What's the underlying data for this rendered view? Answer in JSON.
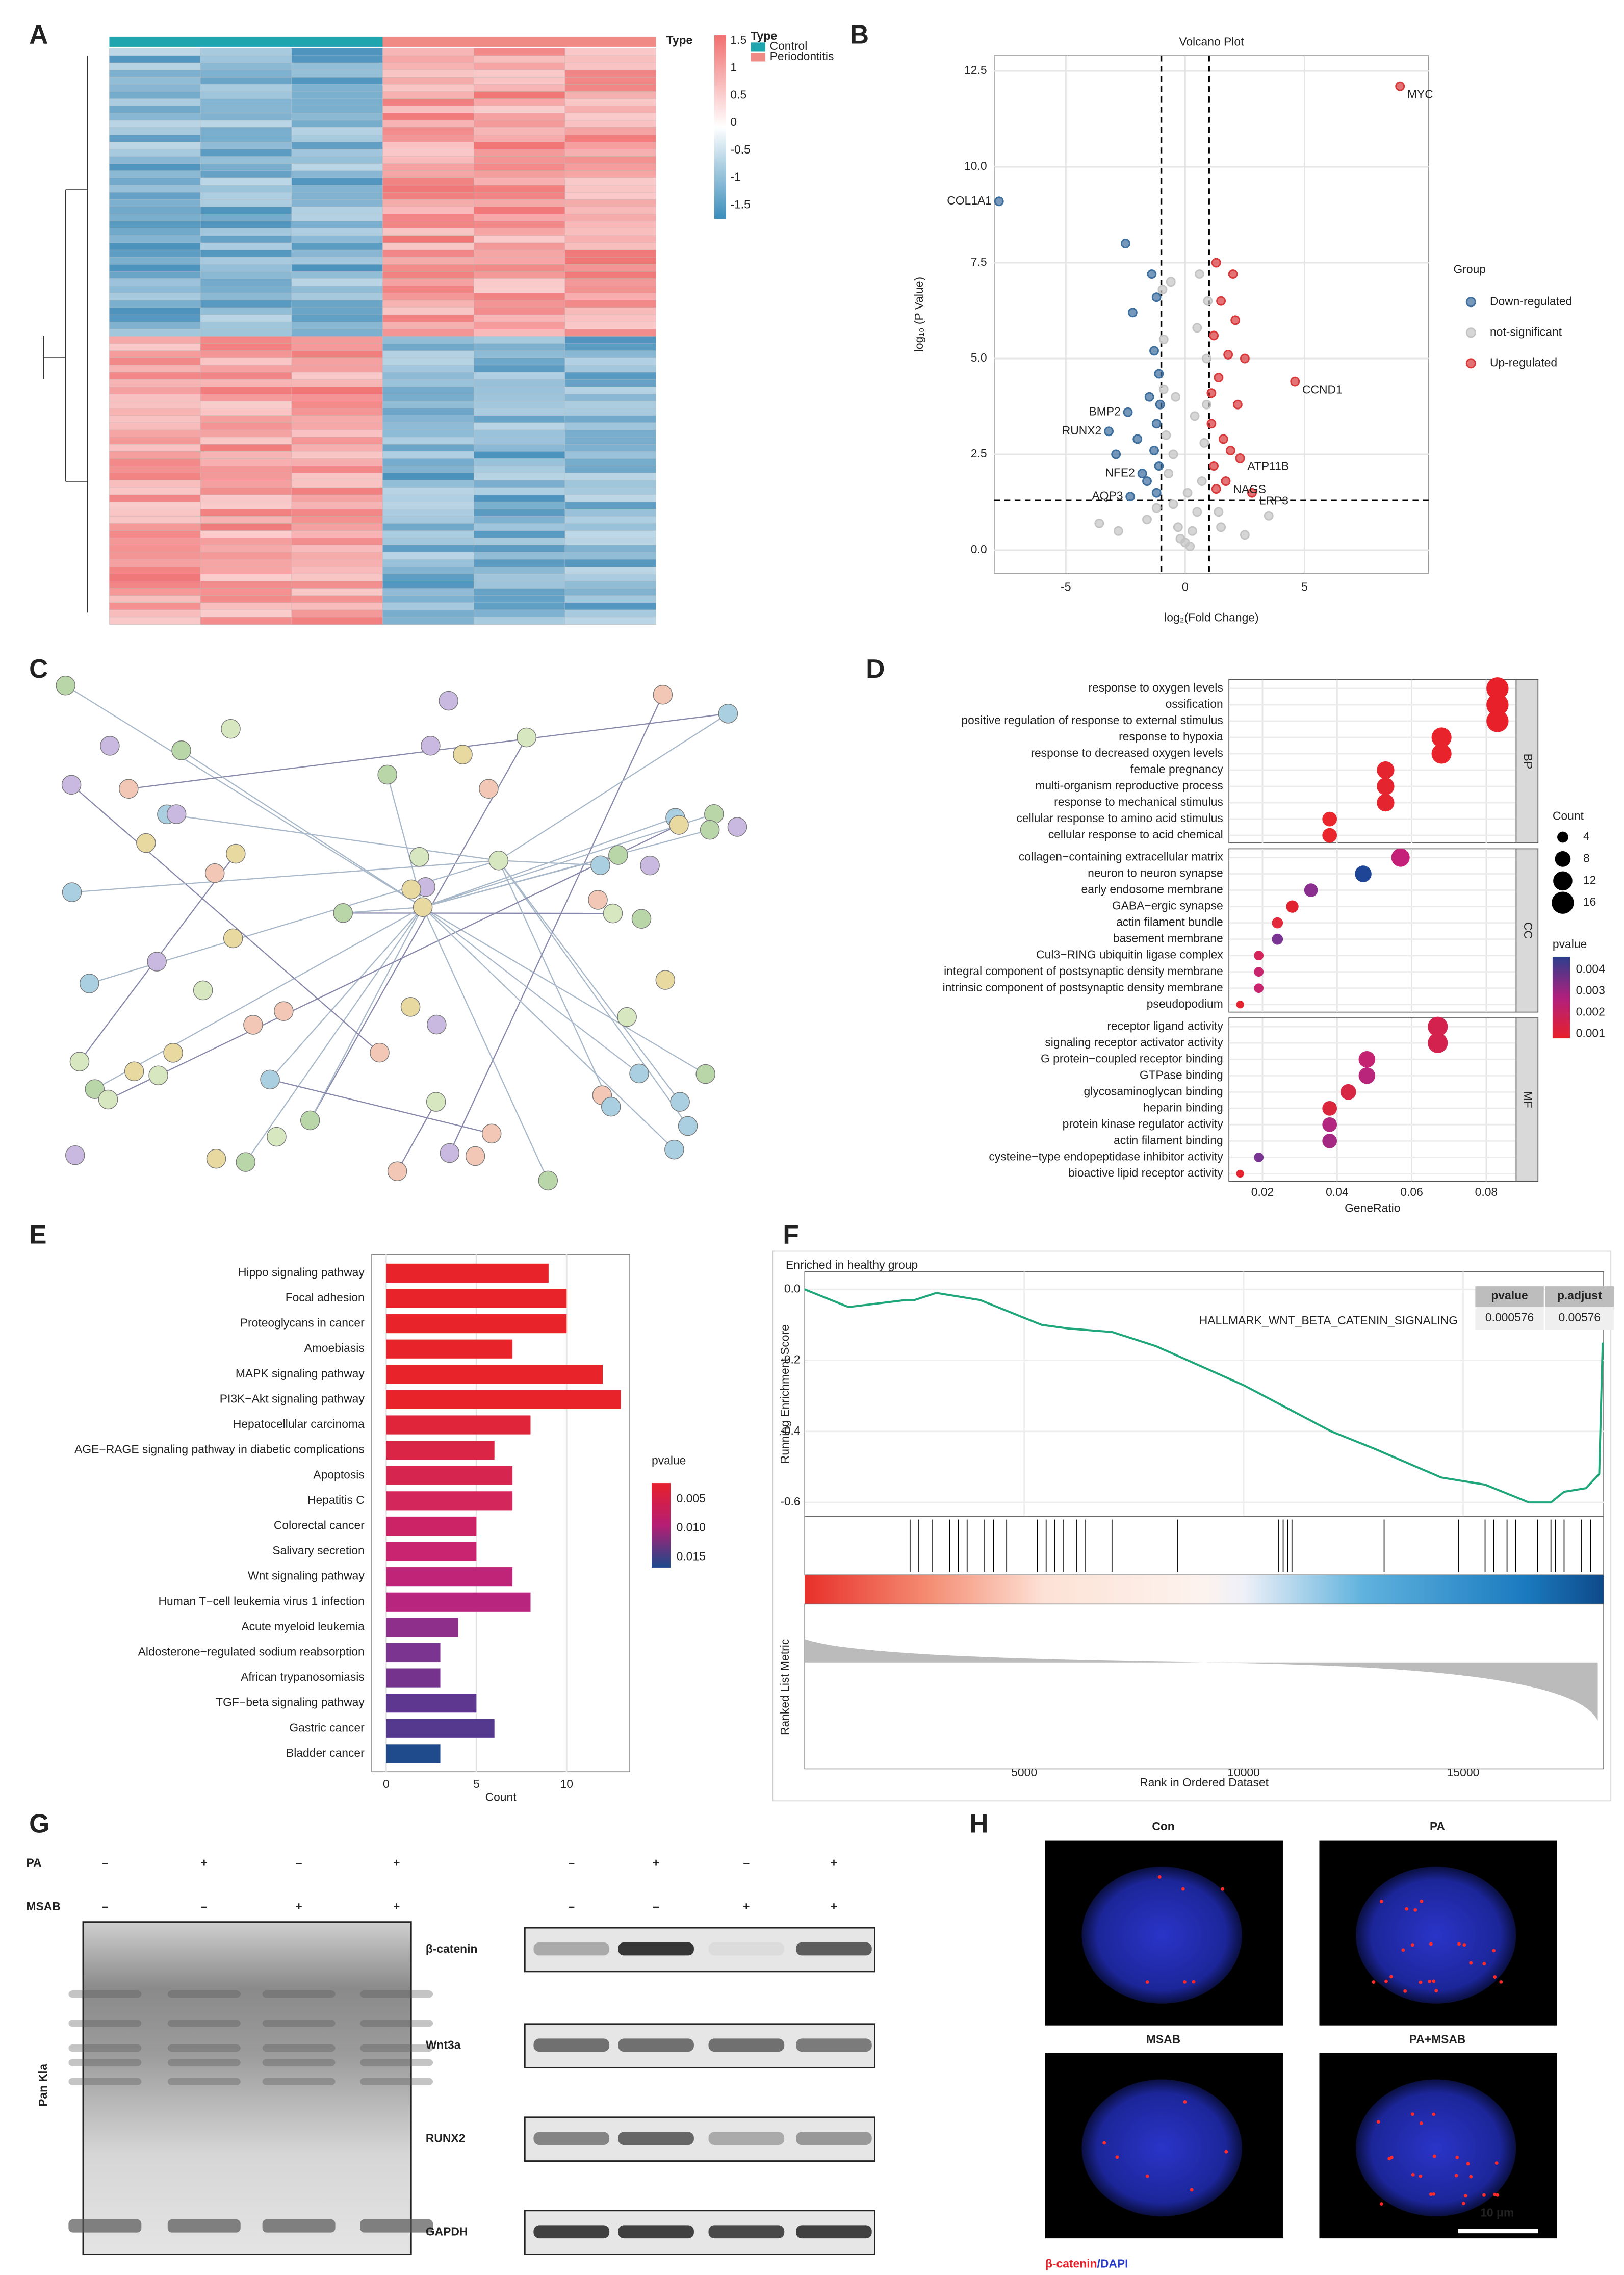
{
  "panel_labels": [
    "A",
    "B",
    "C",
    "D",
    "E",
    "F",
    "G",
    "H"
  ],
  "heatmap": {
    "annotation_title": "Type",
    "legend_title": "Type",
    "groups": [
      "Control",
      "Periodontitis"
    ],
    "group_colors": [
      "#1fa5ad",
      "#f08a84"
    ],
    "legend_ticks": [
      1.5,
      1,
      0.5,
      0,
      -0.5,
      -1,
      -1.5
    ],
    "legend_lim": [
      -1.75,
      1.6
    ],
    "legend_colors": [
      "#f26f6f",
      "#ffffff",
      "#3a8dbb"
    ]
  },
  "chart_data": [
    {
      "type": "scatter",
      "title": "Volcano Plot",
      "xlabel": "log₂(Fold Change)",
      "ylabel": "log₁₀ (P Value)",
      "xlim": [
        -8,
        10.2
      ],
      "ylim": [
        -0.6,
        12.9
      ],
      "xticks": [
        -5,
        0,
        5
      ],
      "yticks": [
        {
          "value": 0,
          "label": "0.0"
        },
        2.5,
        {
          "value": 5,
          "label": "5.0"
        },
        7.5,
        {
          "value": 10,
          "label": "10.0"
        },
        12.5
      ],
      "vlines": [
        -1,
        1
      ],
      "hlines": [
        1.3
      ],
      "grid": true,
      "legend_title": "Group",
      "series": [
        {
          "name": "Down-regulated",
          "color": "#3c6e9e",
          "x": [
            -7.8,
            -2.4,
            -3.2,
            -1.8,
            -2.3,
            -2.5,
            -1.4,
            -2.2,
            -1.2,
            -1.3,
            -1.1,
            -1.5,
            -1.2,
            -2.0,
            -1.3,
            -1.1,
            -1.6,
            -1.2,
            -2.9,
            -1.05
          ],
          "y": [
            9.1,
            3.6,
            3.1,
            2.0,
            1.4,
            8.0,
            7.2,
            6.2,
            6.6,
            5.2,
            4.6,
            4.0,
            3.3,
            2.9,
            2.6,
            2.2,
            1.8,
            1.5,
            2.5,
            3.8
          ],
          "labels": [
            "COL1A1",
            "BMP2",
            "RUNX2",
            "NFE2",
            "AQP3",
            null,
            null,
            null,
            null,
            null,
            null,
            null,
            null,
            null,
            null,
            null,
            null,
            null,
            null,
            null
          ]
        },
        {
          "name": "not-significant",
          "color": "#c4c4c4",
          "x": [
            0,
            0.3,
            -0.3,
            0.5,
            -0.5,
            0.7,
            -0.7,
            0.8,
            -0.8,
            0.9,
            -0.9,
            0.9,
            -0.9,
            0.95,
            -0.95,
            0.6,
            -0.6,
            0.2,
            -0.2,
            1.5,
            -1.6,
            2.5,
            -2.8,
            3.5,
            -3.6,
            0.4,
            -0.4,
            0.5,
            -0.5,
            0.1,
            -1.2,
            1.4
          ],
          "y": [
            0.2,
            0.5,
            0.6,
            1.0,
            1.2,
            1.8,
            2.0,
            2.8,
            3.0,
            3.8,
            4.2,
            5.0,
            5.5,
            6.5,
            6.8,
            7.2,
            7.0,
            0.1,
            0.3,
            0.6,
            0.8,
            0.4,
            0.5,
            0.9,
            0.7,
            3.5,
            4.0,
            5.8,
            2.5,
            1.5,
            1.1,
            1.0
          ]
        },
        {
          "name": "Up-regulated",
          "color": "#d9383a",
          "x": [
            9.0,
            4.6,
            2.3,
            1.7,
            2.8,
            1.3,
            2.0,
            1.5,
            2.1,
            1.2,
            1.8,
            1.4,
            2.2,
            1.1,
            1.6,
            1.2,
            1.9,
            1.3,
            2.5,
            1.1
          ],
          "y": [
            12.1,
            4.4,
            2.4,
            1.8,
            1.5,
            7.5,
            7.2,
            6.5,
            6.0,
            5.6,
            5.1,
            4.5,
            3.8,
            3.3,
            2.9,
            2.2,
            2.6,
            1.6,
            5.0,
            4.1
          ],
          "labels": [
            "MYC",
            "CCND1",
            "ATP11B",
            "NAGS",
            "LRP3",
            null,
            null,
            null,
            null,
            null,
            null,
            null,
            null,
            null,
            null,
            null,
            null,
            null,
            null,
            null
          ]
        }
      ]
    },
    {
      "type": "dot",
      "xlabel": "GeneRatio",
      "xlim": [
        0.011,
        0.088
      ],
      "xticks": [
        0.02,
        0.04,
        0.06,
        0.08
      ],
      "grid": true,
      "size_title": "Count",
      "size_ticks": [
        4,
        8,
        12,
        16
      ],
      "legend_title": "pvalue",
      "legend_ticks": [
        0.004,
        0.003,
        0.002,
        0.001
      ],
      "clim": [
        0.0008,
        0.0046
      ],
      "legend_colors": [
        "#e8202a",
        "#b0207e",
        "#2c3e8c"
      ],
      "groups": [
        {
          "name": "BP",
          "categories": [
            "response to oxygen levels",
            "ossification",
            "positive regulation of response to external stimulus",
            "response to hypoxia",
            "response to decreased oxygen levels",
            "female pregnancy",
            "multi-organism reproductive process",
            "response to mechanical stimulus",
            "cellular response to amino acid stimulus",
            "cellular response to acid chemical"
          ],
          "x": [
            0.083,
            0.083,
            0.083,
            0.068,
            0.068,
            0.053,
            0.053,
            0.053,
            0.038,
            0.038
          ],
          "sizes": [
            16,
            16,
            16,
            13,
            13,
            10,
            10,
            10,
            7,
            7
          ],
          "colors": [
            "#e8202a",
            "#e8202a",
            "#e8202a",
            "#e8232c",
            "#e8232c",
            "#e4252f",
            "#e4252f",
            "#e4252f",
            "#e8262b",
            "#e8262b"
          ]
        },
        {
          "name": "CC",
          "categories": [
            "collagen−containing extracellular matrix",
            "neuron to neuron synapse",
            "early endosome membrane",
            "GABA−ergic synapse",
            "actin filament bundle",
            "basement membrane",
            "Cul3−RING ubiquitin ligase complex",
            "integral component of postsynaptic density membrane",
            "intrinsic component of postsynaptic density membrane",
            "pseudopodium"
          ],
          "x": [
            0.057,
            0.047,
            0.033,
            0.028,
            0.024,
            0.024,
            0.019,
            0.019,
            0.019,
            0.014
          ],
          "sizes": [
            11,
            9,
            6,
            5,
            4,
            4,
            3,
            3,
            3,
            2
          ],
          "colors": [
            "#c4207a",
            "#1f4597",
            "#8a2f8f",
            "#e0232e",
            "#e22a3c",
            "#7a3493",
            "#d4245a",
            "#c8256e",
            "#c8256e",
            "#e4232e"
          ]
        },
        {
          "name": "MF",
          "categories": [
            "receptor ligand activity",
            "signaling receptor activator activity",
            "G protein−coupled receptor binding",
            "GTPase binding",
            "glycosaminoglycan binding",
            "heparin binding",
            "protein kinase regulator activity",
            "actin filament binding",
            "cysteine−type endopeptidase inhibitor activity",
            "bioactive lipid receptor activity"
          ],
          "x": [
            0.067,
            0.067,
            0.048,
            0.048,
            0.043,
            0.038,
            0.038,
            0.038,
            0.019,
            0.014
          ],
          "sizes": [
            13,
            13,
            9,
            9,
            8,
            7,
            7,
            7,
            3,
            2
          ],
          "colors": [
            "#d4224f",
            "#d4224f",
            "#c42372",
            "#b8257b",
            "#d62744",
            "#d9263d",
            "#b3267f",
            "#a52983",
            "#7a3493",
            "#e4232e"
          ]
        }
      ]
    },
    {
      "type": "bar",
      "orientation": "horizontal",
      "xlabel": "Count",
      "categories": [
        "Hippo signaling pathway",
        "Focal adhesion",
        "Proteoglycans in cancer",
        "Amoebiasis",
        "MAPK signaling pathway",
        "PI3K−Akt signaling pathway",
        "Hepatocellular carcinoma",
        "AGE−RAGE signaling pathway in diabetic complications",
        "Apoptosis",
        "Hepatitis C",
        "Colorectal cancer",
        "Salivary secretion",
        "Wnt signaling pathway",
        "Human T−cell leukemia virus 1 infection",
        "Acute myeloid leukemia",
        "Aldosterone−regulated sodium reabsorption",
        "African trypanosomiasis",
        "TGF−beta signaling pathway",
        "Gastric cancer",
        "Bladder cancer"
      ],
      "values": [
        9,
        10,
        10,
        7,
        12,
        13,
        8,
        6,
        7,
        7,
        5,
        5,
        7,
        8,
        4,
        3,
        3,
        5,
        6,
        3
      ],
      "colors": [
        "#e8242a",
        "#e8242a",
        "#e8242a",
        "#e8242a",
        "#e8242a",
        "#e8242a",
        "#e0253a",
        "#da2546",
        "#d6254f",
        "#d3265a",
        "#cc2266",
        "#c92470",
        "#c02478",
        "#b8257f",
        "#8e2f8c",
        "#7b3590",
        "#75338e",
        "#5d3790",
        "#55398f",
        "#1f4b8c"
      ],
      "xlim": [
        -0.8,
        13.5
      ],
      "xticks": [
        0,
        5,
        10
      ],
      "grid": true,
      "legend_title": "pvalue",
      "legend_ticks": [
        0.005,
        {
          "value": 0.01,
          "label": "0.010"
        },
        0.015
      ],
      "clim": [
        0.0022,
        0.0168
      ],
      "legend_colors": [
        "#e8202a",
        "#b51d74",
        "#1b4a8a"
      ]
    },
    {
      "type": "line",
      "title": "Enriched in healthy group",
      "gene_set": "HALLMARK_WNT_BETA_CATENIN_SIGNALING",
      "color": "#1fa67a",
      "ylabel": "Running Enrichment Score",
      "xlabel": "Rank in Ordered Dataset",
      "metric_label": "Ranked List Metric",
      "x": [
        0,
        1000,
        2300,
        2500,
        3000,
        4000,
        5000,
        5400,
        6000,
        7000,
        8000,
        10000,
        12000,
        13000,
        14500,
        15500,
        16500,
        17000,
        17300,
        17800,
        18100,
        18180
      ],
      "y": [
        0,
        -0.05,
        -0.03,
        -0.03,
        -0.01,
        -0.03,
        -0.08,
        -0.1,
        -0.11,
        -0.12,
        -0.16,
        -0.27,
        -0.4,
        -0.45,
        -0.53,
        -0.55,
        -0.6,
        -0.6,
        -0.57,
        -0.56,
        -0.52,
        -0.15
      ],
      "hits": [
        2400,
        2600,
        2900,
        3300,
        3500,
        3700,
        4100,
        4300,
        4600,
        5300,
        5500,
        5700,
        5900,
        6200,
        6400,
        7000,
        8500,
        10800,
        10900,
        11000,
        11100,
        13200,
        14900,
        15500,
        15700,
        16000,
        16200,
        16700,
        17000,
        17100,
        17300,
        17700,
        17900
      ],
      "xlim": [
        0,
        18200
      ],
      "ylim": [
        -0.64,
        0.05
      ],
      "xticks": [
        5000,
        10000,
        15000
      ],
      "yticks": [
        {
          "value": 0,
          "label": "0.0"
        },
        {
          "value": -0.2,
          "label": "-0.2"
        },
        {
          "value": -0.4,
          "label": "-0.4"
        },
        {
          "value": -0.6,
          "label": "-0.6"
        }
      ],
      "table": {
        "header": [
          "pvalue",
          "p.adjust"
        ],
        "row": [
          0.000576,
          0.00576
        ]
      }
    }
  ],
  "blot": {
    "conditions": [
      {
        "name": "PA",
        "signs": [
          "–",
          "+",
          "–",
          "+"
        ]
      },
      {
        "name": "MSAB",
        "signs": [
          "–",
          "–",
          "+",
          "+"
        ]
      }
    ],
    "left_label": "Pan Kla",
    "proteins": [
      "β-catenin",
      "Wnt3a",
      "RUNX2",
      "GAPDH"
    ]
  },
  "microscopy": {
    "panels": [
      "Con",
      "PA",
      "MSAB",
      "PA+MSAB"
    ],
    "scale_bar": "10 μm",
    "stain_red": "β-catenin",
    "stain_blue": "/DAPI"
  }
}
